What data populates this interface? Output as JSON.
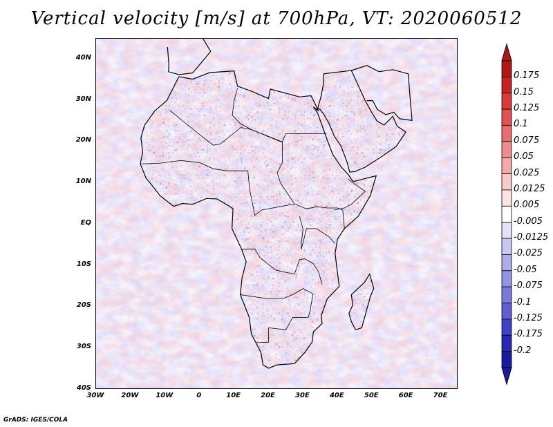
{
  "title": "Vertical velocity [m/s] at 700hPa, VT: 2020060512",
  "credit": "GrADS: IGES/COLA",
  "map": {
    "lat_labels": [
      "40N",
      "30N",
      "20N",
      "10N",
      "EQ",
      "10S",
      "20S",
      "30S",
      "40S"
    ],
    "lon_labels": [
      "30W",
      "20W",
      "10W",
      "0",
      "10E",
      "20E",
      "30E",
      "40E",
      "50E",
      "60E",
      "70E"
    ],
    "extent": {
      "lon_min": -30,
      "lon_max": 75,
      "lat_min": -40,
      "lat_max": 45
    }
  },
  "colorbar": {
    "labels": [
      "0.175",
      "0.15",
      "0.125",
      "0.1",
      "0.075",
      "0.05",
      "0.025",
      "0.0125",
      "0.005",
      "-0.005",
      "-0.0125",
      "-0.025",
      "-0.05",
      "-0.075",
      "-0.1",
      "-0.125",
      "-0.175",
      "-0.2"
    ],
    "colors": [
      "#b01818",
      "#c52424",
      "#d63a3a",
      "#e05252",
      "#e86e6e",
      "#ef8c8c",
      "#f5aaaa",
      "#f9c8c8",
      "#fce4e4",
      "#ffffff",
      "#e2e2f8",
      "#c8c8f2",
      "#aeaeec",
      "#9494e4",
      "#7a7adc",
      "#5e5ed2",
      "#4040c4",
      "#2828b0",
      "#1a1aa0"
    ]
  }
}
